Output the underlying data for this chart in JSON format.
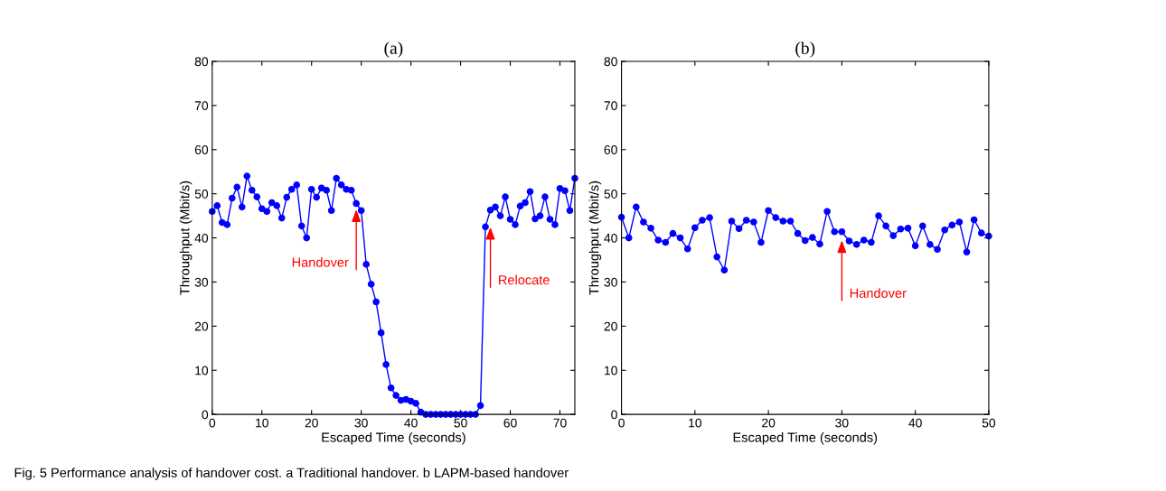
{
  "chart_data": [
    {
      "type": "line",
      "title": "(a)",
      "xlabel": "Escaped Time (seconds)",
      "ylabel": "Throughput (Mbit/s)",
      "x": [
        0,
        1,
        2,
        3,
        4,
        5,
        6,
        7,
        8,
        9,
        10,
        11,
        12,
        13,
        14,
        15,
        16,
        17,
        18,
        19,
        20,
        21,
        22,
        23,
        24,
        25,
        26,
        27,
        28,
        29,
        30,
        31,
        32,
        33,
        34,
        35,
        36,
        37,
        38,
        39,
        40,
        41,
        42,
        43,
        44,
        45,
        46,
        47,
        48,
        49,
        50,
        51,
        52,
        53,
        54,
        55,
        56,
        57,
        58,
        59,
        60,
        61,
        62,
        63,
        64,
        65,
        66,
        67,
        68,
        69,
        70,
        71,
        72,
        73
      ],
      "series": [
        {
          "color": "#0000ff",
          "values": [
            46.0,
            47.3,
            43.5,
            43.0,
            49,
            51.5,
            47,
            54,
            50.8,
            49.3,
            46.6,
            46,
            48,
            47.3,
            44.5,
            49.2,
            51,
            52,
            42.7,
            40,
            51,
            49.2,
            51.3,
            50.8,
            46.2,
            53.5,
            52,
            51,
            50.8,
            47.8,
            46.2,
            34,
            29.5,
            25.5,
            18.5,
            11.3,
            6,
            4.3,
            3.2,
            3.4,
            3,
            2.5,
            0.5,
            0,
            0,
            0,
            0,
            0,
            0,
            0,
            0,
            0,
            0,
            0,
            2,
            42.5,
            46.3,
            47,
            45,
            49.3,
            44.2,
            43,
            47.2,
            48,
            50.5,
            44.3,
            45,
            49.3,
            44.2,
            43,
            51.2,
            50.7,
            46.2,
            53.5
          ]
        }
      ],
      "xlim": [
        0,
        73
      ],
      "xticks": [
        0,
        10,
        20,
        30,
        40,
        50,
        60,
        70
      ],
      "ylim": [
        0,
        80
      ],
      "yticks": [
        0,
        10,
        20,
        30,
        40,
        50,
        60,
        70,
        80
      ],
      "marker": "circle",
      "line_style": "solid",
      "grid": false,
      "annotations": [
        {
          "text": "Handover",
          "x": 29,
          "y": 47
        },
        {
          "text": "Relocate",
          "x": 56,
          "y": 43
        },
        "Fig. 5 Performance analysis of handover cost. a Traditional handover. b LAPM-based handover"
      ]
    },
    {
      "type": "line",
      "title": "(b)",
      "xlabel": "Escaped Time (seconds)",
      "ylabel": "Throughput (Mbit/s)",
      "x": [
        0,
        1,
        2,
        3,
        4,
        5,
        6,
        7,
        8,
        9,
        10,
        11,
        12,
        13,
        14,
        15,
        16,
        17,
        18,
        19,
        20,
        21,
        22,
        23,
        24,
        25,
        26,
        27,
        28,
        29,
        30,
        31,
        32,
        33,
        34,
        35,
        36,
        37,
        38,
        39,
        40,
        41,
        42,
        43,
        44,
        45,
        46,
        47,
        48,
        49,
        50
      ],
      "series": [
        {
          "color": "#0000ff",
          "values": [
            44.7,
            40,
            47,
            43.6,
            42.2,
            39.5,
            39,
            41,
            40,
            37.5,
            42.3,
            44,
            44.6,
            35.7,
            32.7,
            43.8,
            42.1,
            44,
            43.6,
            39,
            46.2,
            44.6,
            43.8,
            43.8,
            41,
            39.4,
            40.1,
            38.6,
            46,
            41.4,
            41.4,
            39.3,
            38.5,
            39.5,
            39,
            45,
            42.7,
            40.5,
            42,
            42.2,
            38.2,
            42.7,
            38.5,
            37.4,
            41.8,
            42.9,
            43.6,
            36.8,
            44.1,
            41.1,
            40.4
          ]
        }
      ],
      "xlim": [
        0,
        50
      ],
      "xticks": [
        0,
        10,
        20,
        30,
        40,
        50
      ],
      "ylim": [
        0,
        80
      ],
      "yticks": [
        0,
        10,
        20,
        30,
        40,
        50,
        60,
        70,
        80
      ],
      "marker": "circle",
      "line_style": "solid",
      "grid": false,
      "annotations": [
        {
          "text": "Handover",
          "x": 30,
          "y": 40
        }
      ]
    }
  ]
}
